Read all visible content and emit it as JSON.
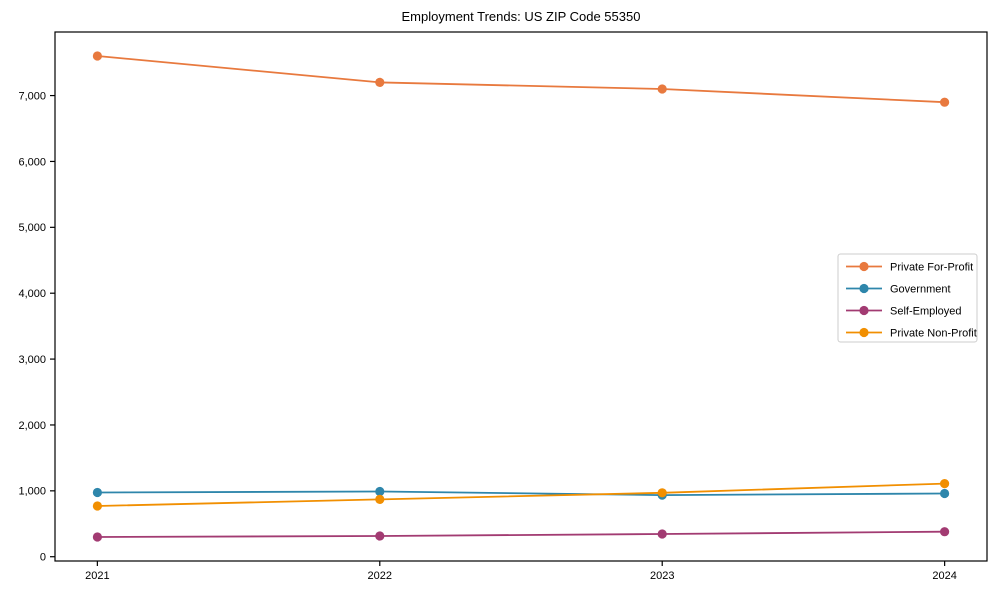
{
  "figure": {
    "title": "Employment Trends: US ZIP Code 55350",
    "background_color": "#ffffff",
    "spine_color": "#000000",
    "legend_frame_color": "#cccccc"
  },
  "chart_data": {
    "type": "line",
    "title": "Employment Trends: US ZIP Code 55350",
    "xlabel": "",
    "ylabel": "",
    "categories": [
      "2021",
      "2022",
      "2023",
      "2024"
    ],
    "series": [
      {
        "name": "Private For-Profit",
        "color": "#E8793E",
        "values": [
          7600,
          7200,
          7100,
          6900
        ]
      },
      {
        "name": "Government",
        "color": "#2E86AB",
        "values": [
          975,
          990,
          935,
          960
        ]
      },
      {
        "name": "Self-Employed",
        "color": "#A23B72",
        "values": [
          300,
          315,
          345,
          380
        ]
      },
      {
        "name": "Private Non-Profit",
        "color": "#F18F01",
        "values": [
          770,
          870,
          970,
          1110
        ]
      }
    ],
    "y_ticks": [
      0,
      1000,
      2000,
      3000,
      4000,
      5000,
      6000,
      7000
    ],
    "y_tick_labels": [
      "0",
      "1,000",
      "2,000",
      "3,000",
      "4,000",
      "5,000",
      "6,000",
      "7,000"
    ],
    "ylim": [
      -65,
      7965
    ],
    "xlim_margin": 0.15,
    "grid": "off",
    "legend_position": "center-right",
    "legend_frame": true
  }
}
